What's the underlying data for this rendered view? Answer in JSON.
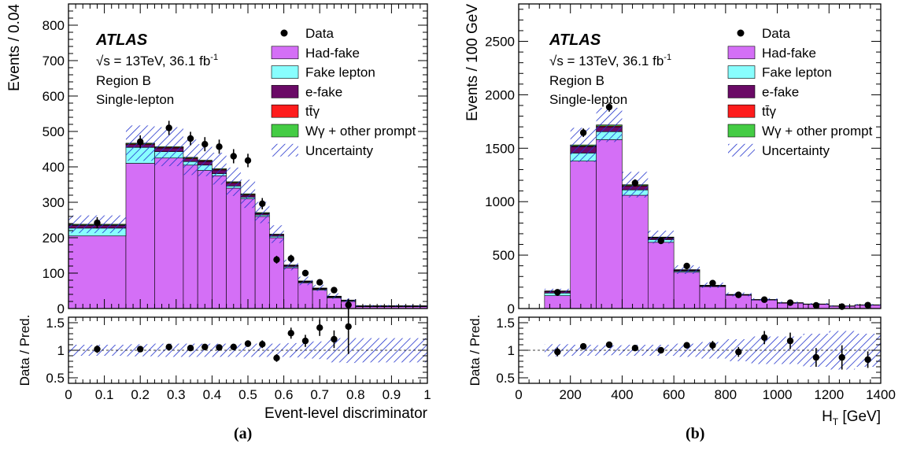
{
  "panel_labels": [
    "(a)",
    "(b)"
  ],
  "colors": {
    "had_fake": "#d46ff6",
    "fake_lepton": "#88fefe",
    "e_fake": "#6a0a66",
    "ttgamma": "#fe1c1c",
    "wgamma": "#44cc44",
    "uncertainty": "#2233cc",
    "data": "#000000"
  },
  "chart_data": [
    {
      "type": "bar",
      "stacked": true,
      "atlas": "ATLAS",
      "energy": "√s = 13TeV, 36.1 fb",
      "energy_sup": "-1",
      "region": "Region B",
      "channel": "Single-lepton",
      "legend": [
        "Data",
        "Had-fake",
        "Fake lepton",
        "e-fake",
        "tt̄γ",
        "Wγ + other prompt",
        "Uncertainty"
      ],
      "legend_position": "top-right",
      "ylabel": "Events / 0.04",
      "ratio_ylabel": "Data / Pred.",
      "xlabel": "Event-level discriminator",
      "xlim": [
        0,
        1
      ],
      "ylim": [
        0,
        860
      ],
      "ratio_ylim": [
        0.4,
        1.6
      ],
      "xticks": [
        "0",
        "0.1",
        "0.2",
        "0.3",
        "0.4",
        "0.5",
        "0.6",
        "0.7",
        "0.8",
        "0.9",
        "1"
      ],
      "yticks": [
        "0",
        "100",
        "200",
        "300",
        "400",
        "500",
        "600",
        "700",
        "800"
      ],
      "ratio_yticks": [
        "0.5",
        "1",
        "1.5"
      ],
      "bin_edges": [
        0,
        0.16,
        0.24,
        0.32,
        0.36,
        0.4,
        0.44,
        0.48,
        0.52,
        0.56,
        0.6,
        0.64,
        0.68,
        0.72,
        0.76,
        0.8,
        1.0
      ],
      "series": [
        {
          "name": "Had-fake",
          "values": [
            205,
            410,
            425,
            405,
            390,
            375,
            340,
            310,
            260,
            200,
            115,
            72,
            52,
            30,
            20,
            5
          ]
        },
        {
          "name": "Fake lepton",
          "values": [
            22,
            45,
            18,
            10,
            15,
            6,
            6,
            4,
            4,
            4,
            3,
            2,
            2,
            2,
            2,
            1
          ]
        },
        {
          "name": "e-fake",
          "values": [
            8,
            8,
            10,
            8,
            10,
            10,
            8,
            6,
            4,
            4,
            3,
            2,
            2,
            1,
            1,
            1
          ]
        },
        {
          "name": "tt̄γ",
          "values": [
            1,
            2,
            2,
            2,
            2,
            2,
            2,
            2,
            1,
            1,
            1,
            1,
            1,
            1,
            0,
            0
          ]
        },
        {
          "name": "Wγ + other prompt",
          "values": [
            2,
            2,
            2,
            2,
            2,
            2,
            2,
            2,
            2,
            1,
            1,
            1,
            1,
            1,
            1,
            1
          ]
        }
      ],
      "uncertainty": [
        25,
        50,
        55,
        50,
        45,
        45,
        40,
        40,
        30,
        25,
        15,
        12,
        9,
        8,
        5,
        2
      ],
      "data": [
        {
          "x": 0.08,
          "y": 242,
          "err": 16
        },
        {
          "x": 0.2,
          "y": 471,
          "err": 18
        },
        {
          "x": 0.28,
          "y": 510,
          "err": 20
        },
        {
          "x": 0.34,
          "y": 480,
          "err": 19
        },
        {
          "x": 0.38,
          "y": 464,
          "err": 20
        },
        {
          "x": 0.42,
          "y": 457,
          "err": 20
        },
        {
          "x": 0.46,
          "y": 430,
          "err": 20
        },
        {
          "x": 0.5,
          "y": 418,
          "err": 19
        },
        {
          "x": 0.54,
          "y": 296,
          "err": 16
        },
        {
          "x": 0.58,
          "y": 138,
          "err": 11
        },
        {
          "x": 0.62,
          "y": 141,
          "err": 11
        },
        {
          "x": 0.66,
          "y": 100,
          "err": 9
        },
        {
          "x": 0.7,
          "y": 74,
          "err": 8
        },
        {
          "x": 0.74,
          "y": 52,
          "err": 7
        },
        {
          "x": 0.78,
          "y": 10,
          "err": 3
        }
      ],
      "ratio": [
        {
          "x": 0.08,
          "y": 1.02,
          "err": 0.07
        },
        {
          "x": 0.2,
          "y": 1.02,
          "err": 0.05
        },
        {
          "x": 0.28,
          "y": 1.06,
          "err": 0.05
        },
        {
          "x": 0.34,
          "y": 1.04,
          "err": 0.05
        },
        {
          "x": 0.38,
          "y": 1.06,
          "err": 0.05
        },
        {
          "x": 0.42,
          "y": 1.05,
          "err": 0.05
        },
        {
          "x": 0.46,
          "y": 1.06,
          "err": 0.05
        },
        {
          "x": 0.5,
          "y": 1.12,
          "err": 0.06
        },
        {
          "x": 0.54,
          "y": 1.11,
          "err": 0.07
        },
        {
          "x": 0.58,
          "y": 0.86,
          "err": 0.07
        },
        {
          "x": 0.62,
          "y": 1.31,
          "err": 0.1
        },
        {
          "x": 0.66,
          "y": 1.17,
          "err": 0.11
        },
        {
          "x": 0.7,
          "y": 1.41,
          "err": 0.15
        },
        {
          "x": 0.74,
          "y": 1.2,
          "err": 0.16
        },
        {
          "x": 0.78,
          "y": 1.43,
          "err": 0.5
        }
      ],
      "ratio_uncertainty": [
        0.1,
        0.11,
        0.12,
        0.12,
        0.12,
        0.12,
        0.12,
        0.12,
        0.12,
        0.12,
        0.13,
        0.15,
        0.16,
        0.22,
        0.23,
        0.22
      ]
    },
    {
      "type": "bar",
      "stacked": true,
      "atlas": "ATLAS",
      "energy": "√s = 13TeV, 36.1 fb",
      "energy_sup": "-1",
      "region": "Region B",
      "channel": "Single-lepton",
      "legend": [
        "Data",
        "Had-fake",
        "Fake lepton",
        "e-fake",
        "tt̄γ",
        "Wγ + other prompt",
        "Uncertainty"
      ],
      "legend_position": "top-right",
      "ylabel": "Events / 100 GeV",
      "ratio_ylabel": "Data / Pred.",
      "xlabel": "H",
      "xlabel_sub": "T",
      "xlabel_unit": " [GeV]",
      "xlim": [
        0,
        1400
      ],
      "ylim": [
        0,
        2850
      ],
      "ratio_ylim": [
        0.4,
        1.6
      ],
      "xticks": [
        "0",
        "200",
        "400",
        "600",
        "800",
        "1000",
        "1200",
        "1400"
      ],
      "yticks": [
        "0",
        "500",
        "1000",
        "1500",
        "2000",
        "2500"
      ],
      "ratio_yticks": [
        "0.5",
        "1",
        "1.5"
      ],
      "bin_edges": [
        100,
        200,
        300,
        400,
        500,
        600,
        700,
        800,
        900,
        1000,
        1100,
        1200,
        1300,
        1400
      ],
      "series": [
        {
          "name": "Had-fake",
          "values": [
            120,
            1380,
            1580,
            1060,
            620,
            340,
            205,
            125,
            80,
            50,
            40,
            22,
            32
          ]
        },
        {
          "name": "Fake lepton",
          "values": [
            25,
            75,
            75,
            50,
            25,
            10,
            5,
            3,
            2,
            2,
            1,
            1,
            1
          ]
        },
        {
          "name": "e-fake",
          "values": [
            15,
            60,
            45,
            35,
            15,
            8,
            4,
            2,
            1,
            1,
            1,
            1,
            1
          ]
        },
        {
          "name": "tt̄γ",
          "values": [
            2,
            6,
            8,
            6,
            4,
            3,
            2,
            1,
            1,
            1,
            0,
            0,
            0
          ]
        },
        {
          "name": "Wγ + other prompt",
          "values": [
            3,
            10,
            10,
            8,
            5,
            3,
            2,
            1,
            1,
            1,
            1,
            1,
            1
          ]
        }
      ],
      "uncertainty": [
        20,
        160,
        160,
        120,
        60,
        40,
        25,
        18,
        12,
        10,
        8,
        6,
        7
      ],
      "data": [
        {
          "x": 150,
          "y": 152,
          "err": 12
        },
        {
          "x": 250,
          "y": 1645,
          "err": 40
        },
        {
          "x": 350,
          "y": 1885,
          "err": 43
        },
        {
          "x": 450,
          "y": 1175,
          "err": 34
        },
        {
          "x": 550,
          "y": 633,
          "err": 25
        },
        {
          "x": 650,
          "y": 398,
          "err": 20
        },
        {
          "x": 750,
          "y": 238,
          "err": 15
        },
        {
          "x": 850,
          "y": 128,
          "err": 11
        },
        {
          "x": 950,
          "y": 83,
          "err": 9
        },
        {
          "x": 1050,
          "y": 55,
          "err": 7
        },
        {
          "x": 1150,
          "y": 30,
          "err": 5
        },
        {
          "x": 1250,
          "y": 18,
          "err": 4
        },
        {
          "x": 1350,
          "y": 32,
          "err": 6
        }
      ],
      "ratio": [
        {
          "x": 150,
          "y": 0.97,
          "err": 0.08
        },
        {
          "x": 250,
          "y": 1.07,
          "err": 0.04
        },
        {
          "x": 350,
          "y": 1.1,
          "err": 0.04
        },
        {
          "x": 450,
          "y": 1.04,
          "err": 0.04
        },
        {
          "x": 550,
          "y": 1.0,
          "err": 0.05
        },
        {
          "x": 650,
          "y": 1.09,
          "err": 0.06
        },
        {
          "x": 750,
          "y": 1.09,
          "err": 0.08
        },
        {
          "x": 850,
          "y": 0.97,
          "err": 0.09
        },
        {
          "x": 950,
          "y": 1.23,
          "err": 0.12
        },
        {
          "x": 1050,
          "y": 1.17,
          "err": 0.15
        },
        {
          "x": 1150,
          "y": 0.87,
          "err": 0.17
        },
        {
          "x": 1250,
          "y": 0.87,
          "err": 0.22
        },
        {
          "x": 1350,
          "y": 0.83,
          "err": 0.15
        }
      ],
      "ratio_uncertainty": [
        0.11,
        0.1,
        0.09,
        0.1,
        0.1,
        0.12,
        0.15,
        0.2,
        0.25,
        0.25,
        0.3,
        0.35,
        0.3
      ]
    }
  ]
}
